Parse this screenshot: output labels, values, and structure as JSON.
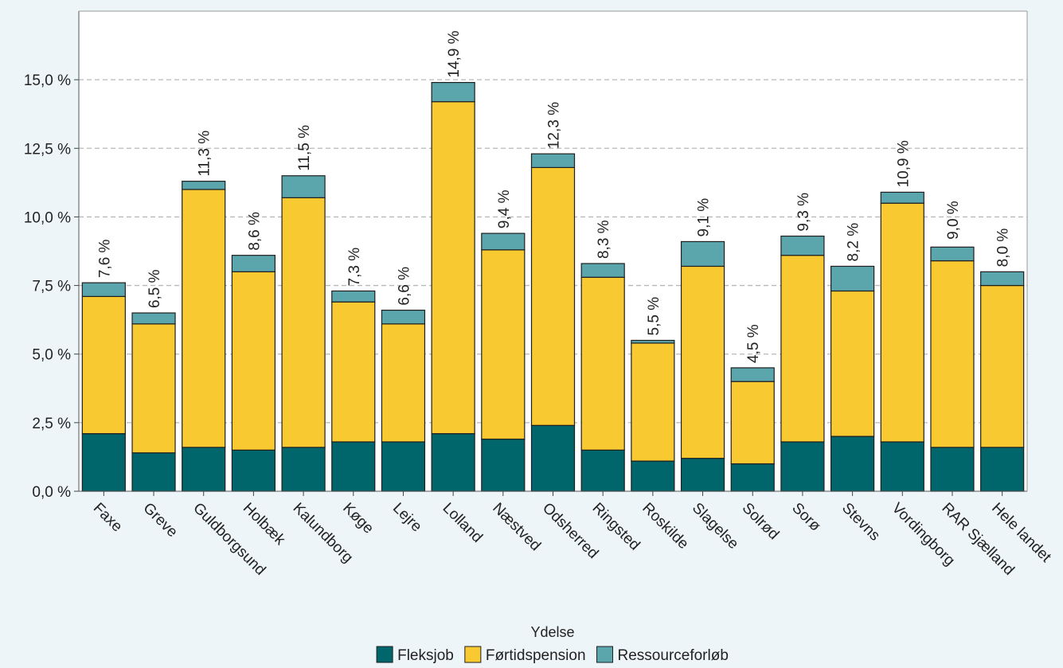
{
  "colors": {
    "background": "#eef5f8",
    "plot_background": "#ffffff",
    "grid": "#b8b8b8",
    "bar_stroke": "#1f1f1f"
  },
  "chart_data": {
    "type": "bar",
    "stacked": true,
    "title": "",
    "xlabel": "",
    "ylabel": "",
    "ylim": [
      0,
      17.5
    ],
    "yticks": [
      0,
      2.5,
      5,
      7.5,
      10,
      12.5,
      15
    ],
    "ytick_labels": [
      "0,0 %",
      "2,5 %",
      "5,0 %",
      "7,5 %",
      "10,0 %",
      "12,5 %",
      "15,0 %"
    ],
    "grid": "horizontal dashed",
    "categories": [
      "Faxe",
      "Greve",
      "Guldborgsund",
      "Holbæk",
      "Kalundborg",
      "Køge",
      "Lejre",
      "Lolland",
      "Næstved",
      "Odsherred",
      "Ringsted",
      "Roskilde",
      "Slagelse",
      "Solrød",
      "Sorø",
      "Stevns",
      "Vordingborg",
      "RAR Sjælland",
      "Hele landet"
    ],
    "series": [
      {
        "name": "Fleksjob",
        "color": "#00666b",
        "values": [
          2.1,
          1.4,
          1.6,
          1.5,
          1.6,
          1.8,
          1.8,
          2.1,
          1.9,
          2.4,
          1.5,
          1.1,
          1.2,
          1.0,
          1.8,
          2.0,
          1.8,
          1.6,
          1.6
        ]
      },
      {
        "name": "Førtidspension",
        "color": "#f9c932",
        "values": [
          5.0,
          4.7,
          9.4,
          6.5,
          9.1,
          5.1,
          4.3,
          12.1,
          6.9,
          9.4,
          6.3,
          4.3,
          7.0,
          3.0,
          6.8,
          5.3,
          8.7,
          6.8,
          5.9
        ]
      },
      {
        "name": "Ressourceforløb",
        "color": "#5ba5ac",
        "values": [
          0.5,
          0.4,
          0.3,
          0.6,
          0.8,
          0.4,
          0.5,
          0.7,
          0.6,
          0.5,
          0.5,
          0.1,
          0.9,
          0.5,
          0.7,
          0.9,
          0.4,
          0.5,
          0.5
        ]
      }
    ],
    "totals": [
      7.6,
      6.5,
      11.3,
      8.6,
      11.5,
      7.3,
      6.6,
      14.9,
      9.4,
      12.3,
      8.3,
      5.5,
      9.1,
      4.5,
      9.3,
      8.2,
      10.9,
      9.0,
      8.0
    ],
    "total_labels": [
      "7,6 %",
      "6,5 %",
      "11,3 %",
      "8,6 %",
      "11,5 %",
      "7,3 %",
      "6,6 %",
      "14,9 %",
      "9,4 %",
      "12,3 %",
      "8,3 %",
      "5,5 %",
      "9,1 %",
      "4,5 %",
      "9,3 %",
      "8,2 %",
      "10,9 %",
      "9,0 %",
      "8,0 %"
    ],
    "legend": {
      "title": "Ydelse",
      "position": "bottom"
    }
  }
}
